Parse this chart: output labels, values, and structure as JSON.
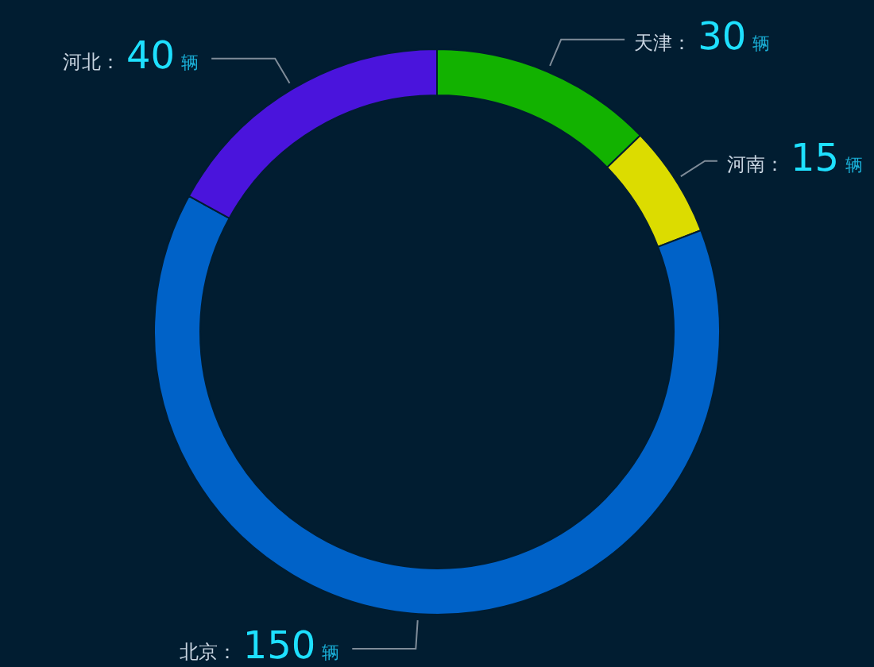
{
  "chart_data": {
    "type": "donut",
    "categories": [
      "天津",
      "河南",
      "北京",
      "河北"
    ],
    "values": [
      30,
      15,
      150,
      40
    ],
    "colors": [
      "#12b200",
      "#dcdc00",
      "#0062c8",
      "#4a14dc"
    ],
    "value_labels": [
      "：30辆",
      "：15辆",
      "：150辆",
      "：40辆"
    ]
  }
}
